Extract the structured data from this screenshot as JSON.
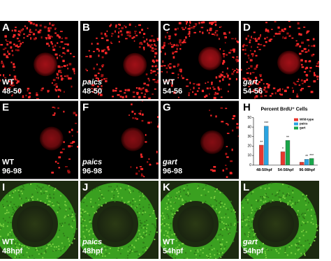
{
  "panels": [
    {
      "letter": "A",
      "lines": [
        "WT",
        "48-50"
      ],
      "stain": "red"
    },
    {
      "letter": "B",
      "lines": [
        "paics",
        "48-50"
      ],
      "stain": "red",
      "italic": true
    },
    {
      "letter": "C",
      "lines": [
        "WT",
        "54-56"
      ],
      "stain": "red"
    },
    {
      "letter": "D",
      "lines": [
        "gart",
        "54-56"
      ],
      "stain": "red",
      "italic": true
    },
    {
      "letter": "E",
      "lines": [
        "WT",
        "96-98"
      ],
      "stain": "red"
    },
    {
      "letter": "F",
      "lines": [
        "paics",
        "96-98"
      ],
      "stain": "red",
      "italic": true
    },
    {
      "letter": "G",
      "lines": [
        "gart",
        "96-98"
      ],
      "stain": "red",
      "italic": true
    },
    {
      "letter": "H",
      "lines": [],
      "stain": "chart"
    },
    {
      "letter": "I",
      "lines": [
        "WT",
        "48hpf"
      ],
      "stain": "green"
    },
    {
      "letter": "J",
      "lines": [
        "paics",
        "48hpf"
      ],
      "stain": "green",
      "italic": true
    },
    {
      "letter": "K",
      "lines": [
        "WT",
        "54hpf"
      ],
      "stain": "green"
    },
    {
      "letter": "L",
      "lines": [
        "gart",
        "54hpf"
      ],
      "stain": "green",
      "italic": true
    }
  ],
  "chart_data": {
    "type": "bar",
    "title": "Percent BrdU⁺ Cells",
    "categories": [
      "48-50hpf",
      "54-56hpf",
      "96-98hpf"
    ],
    "series": [
      {
        "name": "Wild-type",
        "color": "#e8372f",
        "values": [
          21,
          14,
          3
        ],
        "value_labels": [
          "**",
          "*",
          null
        ]
      },
      {
        "name": "paics",
        "color": "#2aa3e0",
        "values": [
          41,
          null,
          6
        ],
        "value_labels": [
          "***",
          null,
          "**"
        ]
      },
      {
        "name": "gart",
        "color": "#1aa64a",
        "values": [
          null,
          26,
          7
        ],
        "value_labels": [
          null,
          "**",
          "***"
        ]
      }
    ],
    "ylim": [
      0,
      50
    ],
    "yticks": [
      0,
      10,
      20,
      30,
      40,
      50
    ],
    "legend": "upper-right"
  }
}
